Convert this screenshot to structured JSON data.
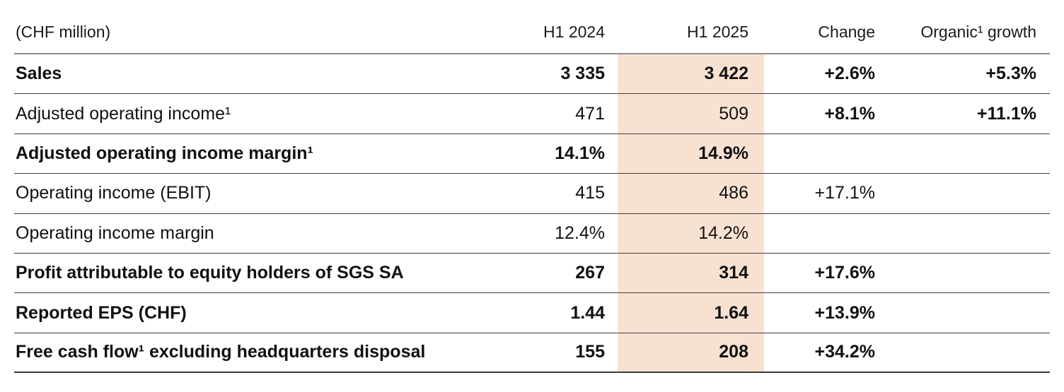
{
  "table": {
    "unit_label": "(CHF million)",
    "highlight_color": "#f9e1d2",
    "columns": {
      "c1": "(CHF million)",
      "c2": "H1 2024",
      "c3": "H1 2025",
      "c4": "Change",
      "c5": "Organic¹ growth"
    },
    "rows": [
      {
        "label": "Sales",
        "h1_2024": "3 335",
        "h1_2025": "3 422",
        "change": "+2.6%",
        "organic": "+5.3%",
        "bold": true,
        "change_bold": true
      },
      {
        "label": "Adjusted operating income¹",
        "h1_2024": "471",
        "h1_2025": "509",
        "change": "+8.1%",
        "organic": "+11.1%",
        "bold": false,
        "change_bold": true
      },
      {
        "label": "Adjusted operating income margin¹",
        "h1_2024": "14.1%",
        "h1_2025": "14.9%",
        "change": "",
        "organic": "",
        "bold": true,
        "change_bold": false
      },
      {
        "label": "Operating income (EBIT)",
        "h1_2024": "415",
        "h1_2025": "486",
        "change": "+17.1%",
        "organic": "",
        "bold": false,
        "change_bold": false
      },
      {
        "label": "Operating income margin",
        "h1_2024": "12.4%",
        "h1_2025": "14.2%",
        "change": "",
        "organic": "",
        "bold": false,
        "change_bold": false
      },
      {
        "label": "Profit attributable to equity holders of SGS SA",
        "h1_2024": "267",
        "h1_2025": "314",
        "change": "+17.6%",
        "organic": "",
        "bold": true,
        "change_bold": true
      },
      {
        "label": "Reported EPS (CHF)",
        "h1_2024": "1.44",
        "h1_2025": "1.64",
        "change": "+13.9%",
        "organic": "",
        "bold": true,
        "change_bold": true
      },
      {
        "label": "Free cash flow¹ excluding headquarters disposal",
        "h1_2024": "155",
        "h1_2025": "208",
        "change": "+34.2%",
        "organic": "",
        "bold": true,
        "change_bold": true
      }
    ]
  }
}
